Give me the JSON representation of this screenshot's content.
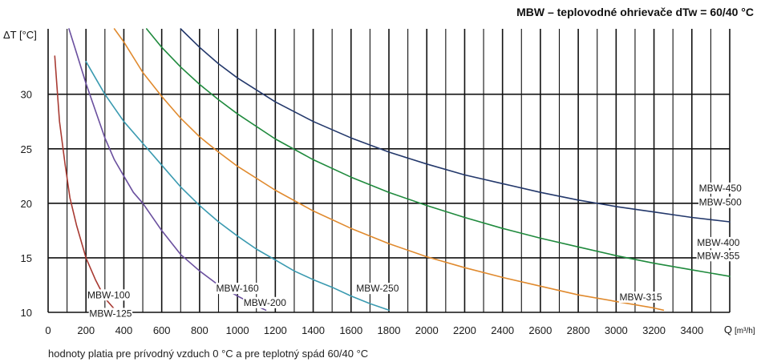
{
  "chart_data": {
    "type": "line",
    "title": "MBW – teplovodné ohrievače dTw = 60/40 °C",
    "ylabel": "ΔT [°C]",
    "xlabel_main": "Q",
    "xlabel_unit": "[m³/h]",
    "footnote": "hodnoty platia pre prívodný vzduch 0 °C a pre teplotný spád 60/40 °C",
    "xlim": [
      0,
      3600
    ],
    "ylim": [
      10,
      36
    ],
    "x_ticks": [
      0,
      200,
      400,
      600,
      800,
      1000,
      1200,
      1400,
      1600,
      1800,
      2000,
      2200,
      2400,
      2600,
      2800,
      3000,
      3200,
      3400
    ],
    "x_tick_labels": [
      "0",
      "200",
      "400",
      "600",
      "800",
      "1000",
      "1200",
      "1400",
      "1600",
      "1800",
      "2000",
      "2200",
      "2400",
      "2600",
      "2800",
      "3000",
      "3200",
      "3400"
    ],
    "y_ticks": [
      10,
      15,
      20,
      25,
      30
    ],
    "y_tick_labels": [
      "10",
      "15",
      "20",
      "25",
      "30"
    ],
    "minor_grid_step_x": 100,
    "grid": true,
    "series": [
      {
        "color": "#a83a32",
        "x": [
          35,
          60,
          90,
          115,
          150,
          200,
          250,
          300,
          350
        ],
        "y": [
          33.5,
          27.5,
          23.5,
          20.5,
          18,
          15,
          13,
          11.3,
          10.3
        ]
      },
      {
        "color": "#6a4f9e",
        "x": [
          110,
          150,
          200,
          250,
          300,
          350,
          400,
          450,
          500,
          600,
          700,
          800,
          900,
          1000,
          1100,
          1150
        ],
        "y": [
          36,
          33.8,
          31,
          28.5,
          26,
          24,
          22.5,
          21,
          20,
          17.5,
          15.3,
          13.8,
          12.5,
          11.5,
          10.6,
          10.2
        ]
      },
      {
        "color": "#3a9ab0",
        "x": [
          200,
          250,
          300,
          400,
          500,
          600,
          700,
          800,
          900,
          1000,
          1100,
          1200,
          1300,
          1400,
          1500,
          1600,
          1700,
          1800
        ],
        "y": [
          33,
          31.5,
          30,
          27.5,
          25.5,
          23.5,
          21.5,
          19.8,
          18.3,
          17,
          15.8,
          14.8,
          13.8,
          13,
          12.3,
          11.5,
          10.8,
          10.2
        ]
      },
      {
        "color": "#e08a2e",
        "x": [
          350,
          400,
          500,
          600,
          700,
          800,
          900,
          1000,
          1200,
          1400,
          1600,
          1800,
          2000,
          2200,
          2400,
          2600,
          2800,
          3000,
          3200,
          3250
        ],
        "y": [
          36,
          34.8,
          32,
          29.8,
          27.8,
          26.1,
          24.7,
          23.4,
          21.2,
          19.3,
          17.7,
          16.3,
          15.1,
          14.1,
          13.2,
          12.4,
          11.6,
          11,
          10.4,
          10.2
        ]
      },
      {
        "color": "#1f8a3d",
        "x": [
          520,
          600,
          700,
          800,
          900,
          1000,
          1200,
          1400,
          1600,
          1800,
          2000,
          2200,
          2400,
          2600,
          2800,
          3000,
          3200,
          3400,
          3600
        ],
        "y": [
          36,
          34.3,
          32.5,
          30.9,
          29.5,
          28.2,
          25.9,
          24,
          22.4,
          21,
          19.8,
          18.7,
          17.7,
          16.8,
          16,
          15.2,
          14.5,
          13.9,
          13.3
        ]
      },
      {
        "color": "#23386b",
        "x": [
          700,
          800,
          900,
          1000,
          1200,
          1400,
          1600,
          1800,
          2000,
          2200,
          2400,
          2600,
          2800,
          3000,
          3200,
          3400,
          3600
        ],
        "y": [
          36,
          34.3,
          32.8,
          31.5,
          29.3,
          27.5,
          26,
          24.7,
          23.6,
          22.6,
          21.8,
          21,
          20.3,
          19.7,
          19.2,
          18.7,
          18.3
        ]
      }
    ],
    "annotations": [
      {
        "text": "MBW-100",
        "x": 320,
        "y": 11.3,
        "anchor": "middle"
      },
      {
        "text": "MBW-125",
        "x": 330,
        "y": 9.6,
        "anchor": "middle"
      },
      {
        "text": "MBW-160",
        "x": 1000,
        "y": 11.9,
        "anchor": "middle"
      },
      {
        "text": "MBW-200",
        "x": 1145,
        "y": 10.6,
        "anchor": "middle"
      },
      {
        "text": "MBW-250",
        "x": 1740,
        "y": 11.9,
        "anchor": "middle"
      },
      {
        "text": "MBW-315",
        "x": 3130,
        "y": 11.1,
        "anchor": "middle"
      },
      {
        "text": "MBW-450",
        "x": 3550,
        "y": 21.1,
        "anchor": "middle"
      },
      {
        "text": "MBW-500",
        "x": 3550,
        "y": 19.8,
        "anchor": "middle"
      },
      {
        "text": "MBW-400",
        "x": 3540,
        "y": 16.1,
        "anchor": "middle"
      },
      {
        "text": "MBW-355",
        "x": 3540,
        "y": 14.9,
        "anchor": "middle"
      }
    ]
  }
}
